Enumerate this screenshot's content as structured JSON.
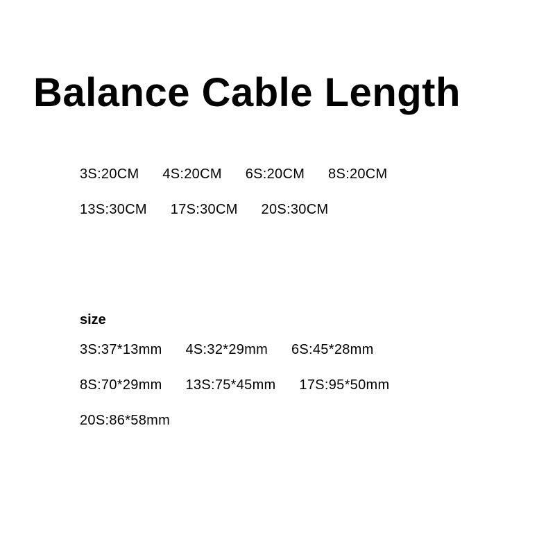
{
  "title": "Balance Cable Length",
  "lengths": {
    "row1": [
      "3S:20CM",
      "4S:20CM",
      "6S:20CM",
      "8S:20CM"
    ],
    "row2": [
      "13S:30CM",
      "17S:30CM",
      "20S:30CM"
    ]
  },
  "size": {
    "heading": "size",
    "row1": [
      "3S:37*13mm",
      "4S:32*29mm",
      "6S:45*28mm"
    ],
    "row2": [
      "8S:70*29mm",
      "13S:75*45mm",
      "17S:95*50mm"
    ],
    "row3": [
      "20S:86*58mm"
    ]
  },
  "colors": {
    "background": "#ffffff",
    "text": "#000000"
  },
  "typography": {
    "title_fontsize": 58,
    "title_weight": 700,
    "body_fontsize": 20,
    "body_weight": 400,
    "heading_weight": 700
  }
}
